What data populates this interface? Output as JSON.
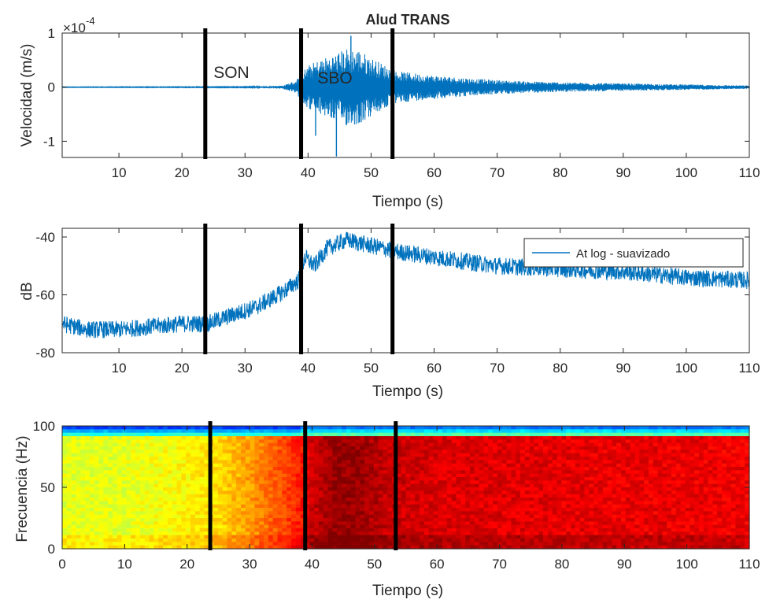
{
  "chart_data": [
    {
      "type": "line",
      "title": "Alud TRANS",
      "xlabel": "Tiempo (s)",
      "ylabel": "Velocidad (m/s)",
      "y_exponent_label": "×10",
      "y_exponent_power": "-4",
      "xlim": [
        1,
        110
      ],
      "ylim": [
        -1.3,
        1.0
      ],
      "xticks": [
        10,
        20,
        30,
        40,
        50,
        60,
        70,
        80,
        90,
        100,
        110
      ],
      "yticks": [
        -1,
        0,
        1
      ],
      "series_color": "#0072BD",
      "envelope": {
        "x": [
          1,
          30,
          36,
          38,
          40,
          42,
          44,
          46,
          48,
          50,
          52,
          54,
          58,
          62,
          66,
          72,
          80,
          90,
          100,
          110
        ],
        "amplitude": [
          0.005,
          0.008,
          0.03,
          0.12,
          0.4,
          0.52,
          0.6,
          0.72,
          0.7,
          0.55,
          0.42,
          0.3,
          0.24,
          0.2,
          0.16,
          0.12,
          0.09,
          0.07,
          0.05,
          0.03
        ]
      },
      "spikes": [
        {
          "x": 44.5,
          "y": -1.28
        },
        {
          "x": 46.8,
          "y": 0.95
        },
        {
          "x": 41.2,
          "y": -0.9
        }
      ],
      "annotations": [
        {
          "text": "SON",
          "x": 25,
          "y": 0.4
        },
        {
          "text": "SBO",
          "x": 41.5,
          "y": 0.3
        }
      ],
      "vlines": [
        23.7,
        38.9,
        53.4
      ]
    },
    {
      "type": "line",
      "title": "",
      "xlabel": "Tiempo (s)",
      "ylabel": "dB",
      "xlim": [
        1,
        110
      ],
      "ylim": [
        -80,
        -37
      ],
      "xticks": [
        10,
        20,
        30,
        40,
        50,
        60,
        70,
        80,
        90,
        100,
        110
      ],
      "yticks": [
        -80,
        -60,
        -40
      ],
      "series_color": "#0072BD",
      "legend": {
        "entries": [
          "At log - suavizado"
        ],
        "placement": "top-right"
      },
      "trend": {
        "x": [
          1,
          5,
          10,
          15,
          20,
          24,
          28,
          32,
          36,
          38.5,
          39.5,
          41,
          43,
          46,
          50,
          54,
          60,
          70,
          80,
          90,
          100,
          110
        ],
        "y": [
          -70,
          -72,
          -72,
          -71,
          -70,
          -70,
          -67,
          -64,
          -59,
          -55,
          -47,
          -50,
          -44,
          -41,
          -43,
          -45,
          -47,
          -50,
          -51,
          -52,
          -54,
          -55
        ]
      },
      "vlines": [
        23.7,
        38.9,
        53.4
      ]
    },
    {
      "type": "heatmap",
      "title": "",
      "xlabel": "Tiempo (s)",
      "ylabel": "Frecuencia (Hz)",
      "xlim": [
        0,
        110
      ],
      "ylim": [
        0,
        100
      ],
      "xticks": [
        0,
        10,
        20,
        30,
        40,
        50,
        60,
        70,
        80,
        90,
        100,
        110
      ],
      "yticks": [
        0,
        50,
        100
      ],
      "colormap": "jet",
      "time_profile": {
        "x": [
          0,
          10,
          20,
          25,
          30,
          35,
          38.5,
          39.5,
          44,
          48,
          52,
          60,
          80,
          110
        ],
        "level": [
          0.6,
          0.6,
          0.63,
          0.66,
          0.72,
          0.8,
          0.86,
          0.92,
          0.98,
          0.97,
          0.93,
          0.91,
          0.9,
          0.89
        ]
      },
      "top_band_hz": 92,
      "vlines": [
        23.7,
        38.9,
        53.4
      ]
    }
  ]
}
